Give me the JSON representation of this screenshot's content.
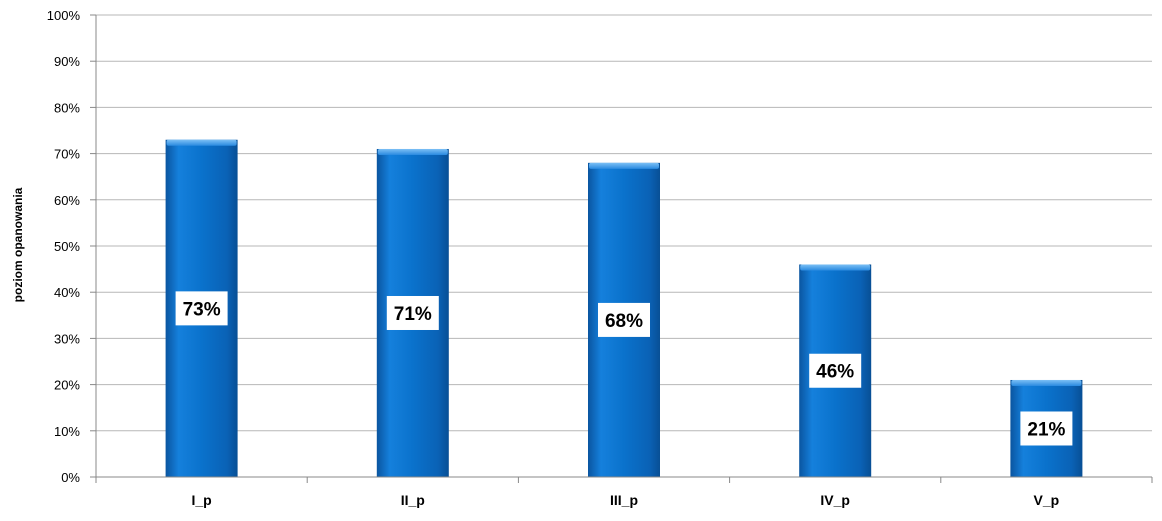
{
  "chart_data": {
    "type": "bar",
    "title": "",
    "xlabel": "",
    "ylabel": "poziom opanowania",
    "categories": [
      "I_p",
      "II_p",
      "III_p",
      "IV_p",
      "V_p"
    ],
    "values": [
      73,
      71,
      68,
      46,
      21
    ],
    "data_labels": [
      "73%",
      "71%",
      "68%",
      "46%",
      "21%"
    ],
    "ylim": [
      0,
      100
    ],
    "ytick_labels": [
      "0%",
      "10%",
      "20%",
      "30%",
      "40%",
      "50%",
      "60%",
      "70%",
      "80%",
      "90%",
      "100%"
    ],
    "grid": true,
    "legend": "none",
    "colors": {
      "bar": "#0a6ec8",
      "bar_light": "#4fa6ec",
      "bar_dark": "#0a55a0",
      "grid": "#b7b7b7"
    }
  }
}
